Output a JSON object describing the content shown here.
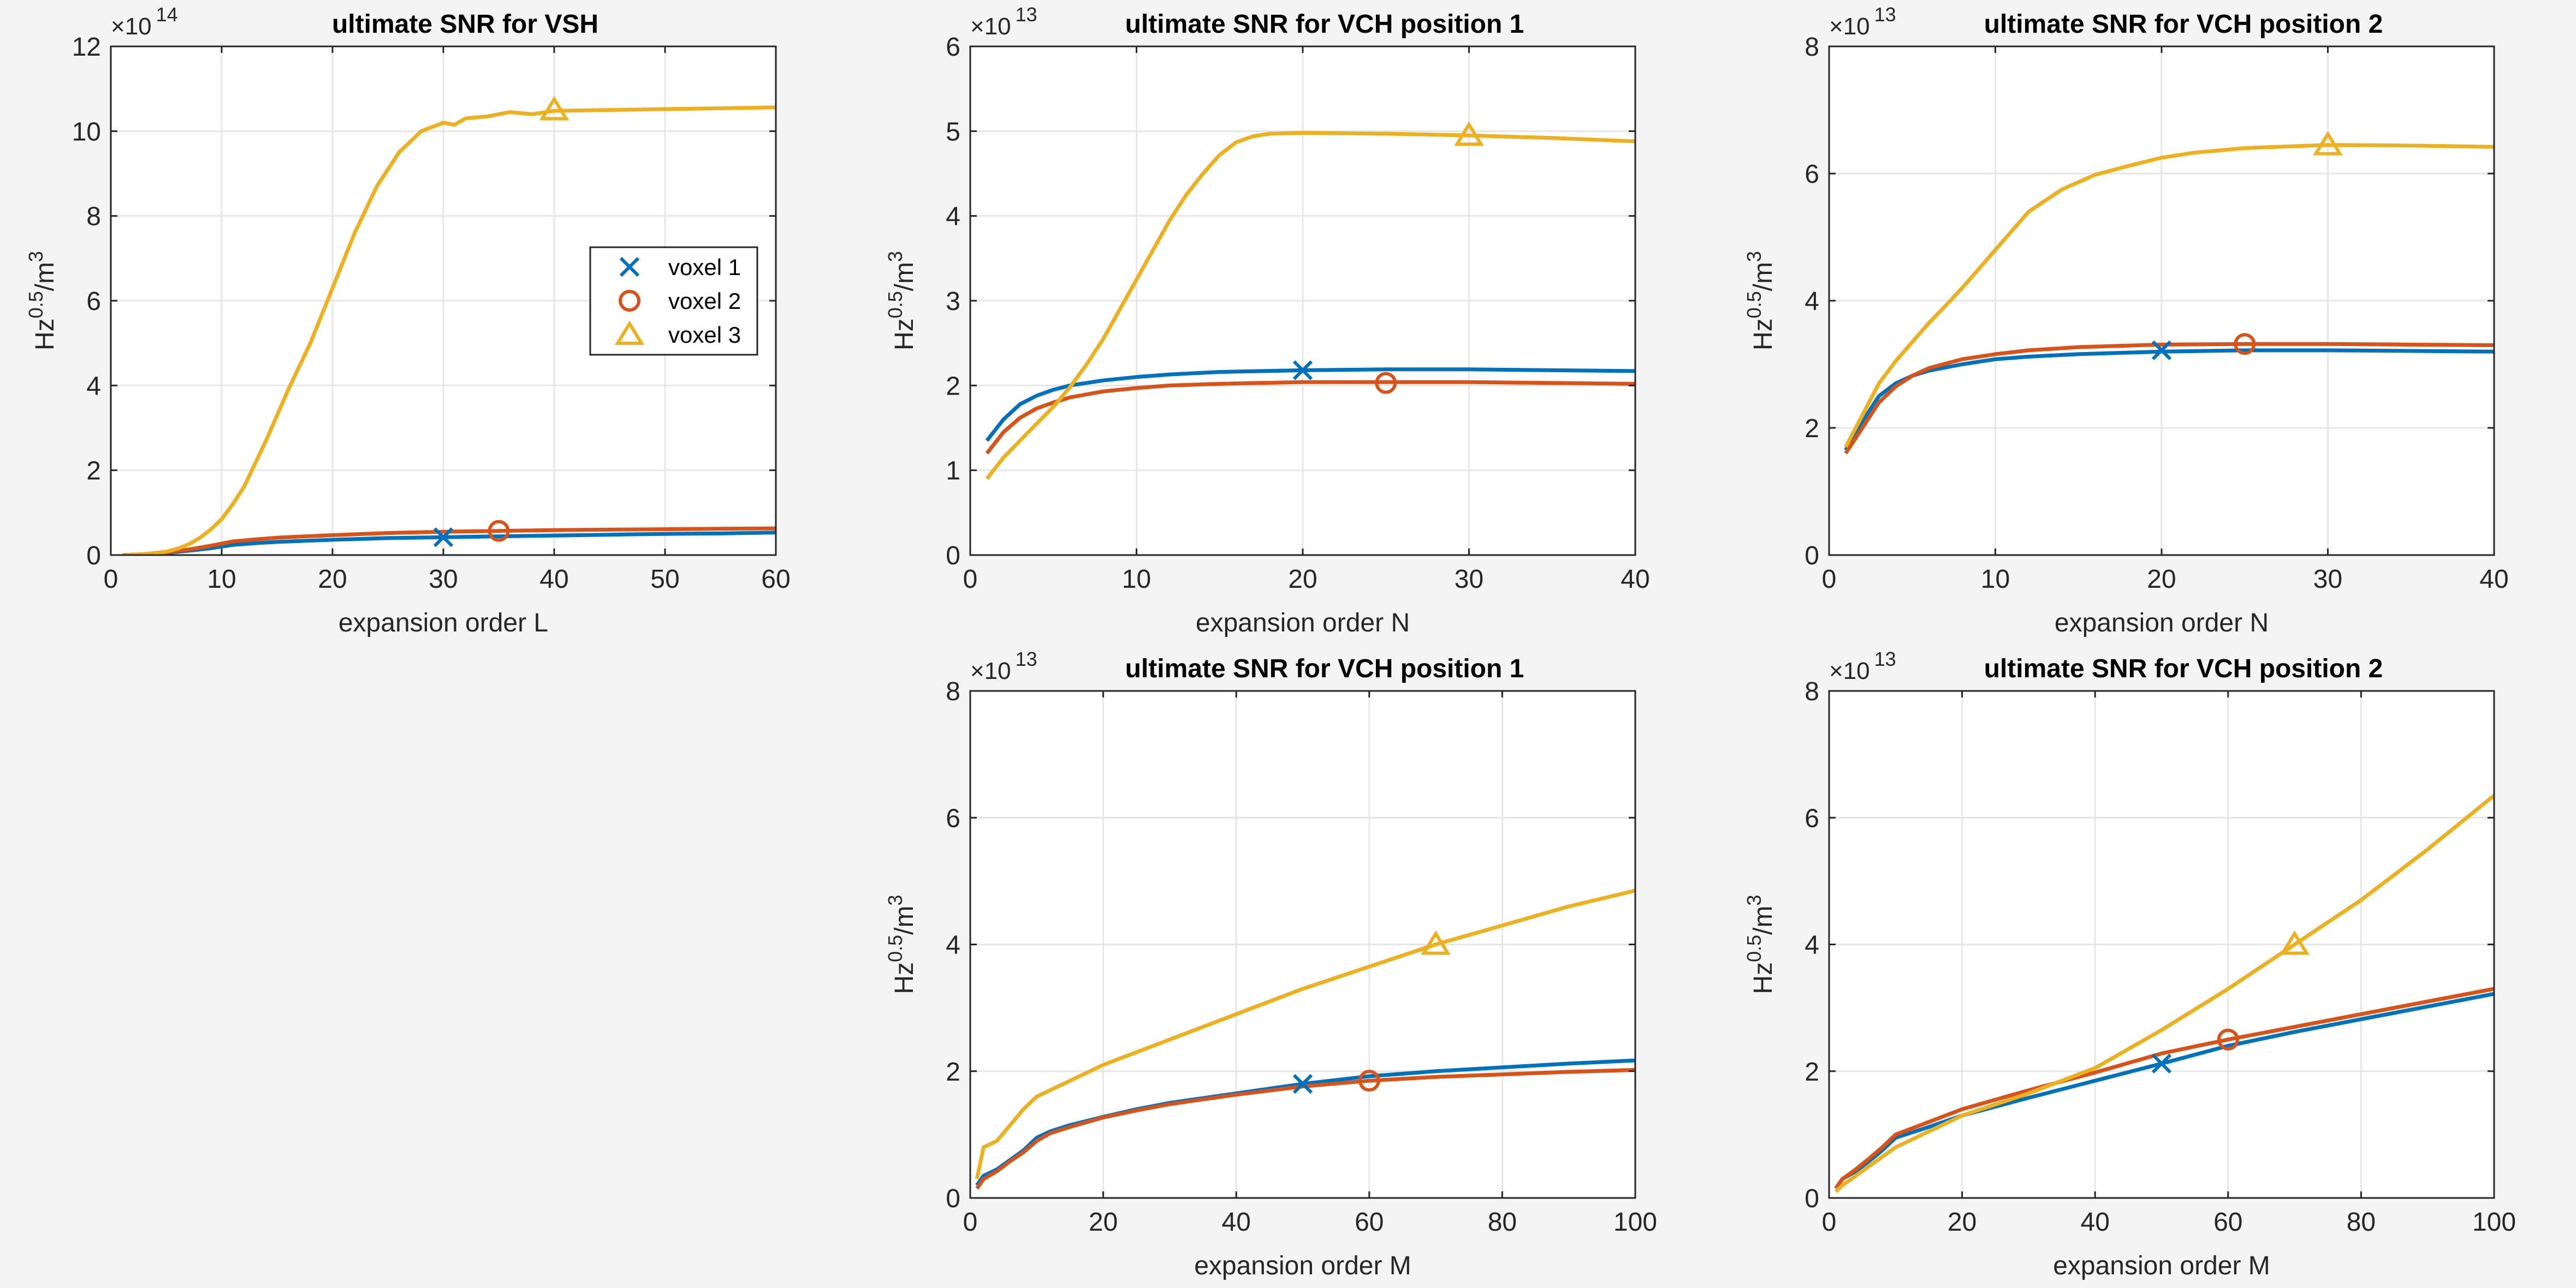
{
  "colors": {
    "voxel1": "#0072bd",
    "voxel2": "#d95319",
    "voxel3": "#edb120",
    "grid": "#e6e6e6",
    "axis": "#262626",
    "background": "#f4f4f4",
    "plot_bg": "#ffffff"
  },
  "chart_data": [
    {
      "type": "line",
      "title": "ultimate SNR for VSH",
      "xlabel": "expansion order L",
      "ylabel_base": "Hz",
      "ylabel_exp": "0.5",
      "ylabel_mid": "/m",
      "ylabel_exp2": "3",
      "multiplier_base": "×10",
      "multiplier_exp": "14",
      "xlim": [
        0,
        60
      ],
      "ylim": [
        0,
        12
      ],
      "xticks": [
        0,
        10,
        20,
        30,
        40,
        50,
        60
      ],
      "yticks": [
        0,
        2,
        4,
        6,
        8,
        10,
        12
      ],
      "legend": {
        "position": "east",
        "entries": [
          {
            "label": "voxel 1",
            "marker": "x",
            "color": "#0072bd"
          },
          {
            "label": "voxel 2",
            "marker": "o",
            "color": "#d95319"
          },
          {
            "label": "voxel 3",
            "marker": "triangle",
            "color": "#edb120"
          }
        ]
      },
      "series": [
        {
          "name": "voxel 1",
          "color": "#0072bd",
          "marker": "x",
          "marker_at": [
            30,
            0.42
          ],
          "x": [
            1,
            3,
            5,
            7,
            9,
            11,
            13,
            15,
            20,
            25,
            30,
            35,
            40,
            45,
            50,
            55,
            60
          ],
          "y": [
            0,
            0.02,
            0.05,
            0.1,
            0.16,
            0.24,
            0.28,
            0.31,
            0.36,
            0.4,
            0.42,
            0.44,
            0.46,
            0.48,
            0.5,
            0.51,
            0.53
          ]
        },
        {
          "name": "voxel 2",
          "color": "#d95319",
          "marker": "o",
          "marker_at": [
            35,
            0.57
          ],
          "x": [
            1,
            3,
            5,
            7,
            9,
            11,
            13,
            15,
            20,
            25,
            30,
            35,
            40,
            45,
            50,
            55,
            60
          ],
          "y": [
            0,
            0.02,
            0.06,
            0.13,
            0.22,
            0.32,
            0.37,
            0.41,
            0.47,
            0.52,
            0.55,
            0.57,
            0.59,
            0.6,
            0.61,
            0.62,
            0.63
          ]
        },
        {
          "name": "voxel 3",
          "color": "#edb120",
          "marker": "triangle",
          "marker_at": [
            40,
            10.5
          ],
          "x": [
            1,
            3,
            5,
            6,
            7,
            8,
            9,
            10,
            11,
            12,
            14,
            16,
            18,
            20,
            22,
            24,
            26,
            28,
            30,
            31,
            32,
            34,
            36,
            38,
            40,
            45,
            50,
            55,
            60
          ],
          "y": [
            0,
            0.02,
            0.08,
            0.15,
            0.25,
            0.4,
            0.6,
            0.85,
            1.2,
            1.6,
            2.7,
            3.9,
            5.0,
            6.3,
            7.6,
            8.7,
            9.5,
            10.0,
            10.2,
            10.15,
            10.3,
            10.35,
            10.45,
            10.4,
            10.48,
            10.5,
            10.52,
            10.54,
            10.56
          ]
        }
      ]
    },
    {
      "type": "line",
      "title": "ultimate SNR for VCH position 1",
      "xlabel": "expansion order N",
      "ylabel_base": "Hz",
      "ylabel_exp": "0.5",
      "ylabel_mid": "/m",
      "ylabel_exp2": "3",
      "multiplier_base": "×10",
      "multiplier_exp": "13",
      "xlim": [
        0,
        40
      ],
      "ylim": [
        0,
        6
      ],
      "xticks": [
        0,
        10,
        20,
        30,
        40
      ],
      "yticks": [
        0,
        1,
        2,
        3,
        4,
        5,
        6
      ],
      "series": [
        {
          "name": "voxel 1",
          "color": "#0072bd",
          "marker": "x",
          "marker_at": [
            20,
            2.18
          ],
          "x": [
            1,
            2,
            3,
            4,
            5,
            6,
            8,
            10,
            12,
            15,
            20,
            25,
            30,
            35,
            40
          ],
          "y": [
            1.35,
            1.6,
            1.78,
            1.88,
            1.95,
            2.0,
            2.06,
            2.1,
            2.13,
            2.16,
            2.18,
            2.19,
            2.19,
            2.18,
            2.17
          ]
        },
        {
          "name": "voxel 2",
          "color": "#d95319",
          "marker": "o",
          "marker_at": [
            25,
            2.03
          ],
          "x": [
            1,
            2,
            3,
            4,
            5,
            6,
            8,
            10,
            12,
            15,
            20,
            25,
            30,
            35,
            40
          ],
          "y": [
            1.2,
            1.45,
            1.62,
            1.73,
            1.8,
            1.86,
            1.93,
            1.97,
            2.0,
            2.02,
            2.04,
            2.04,
            2.04,
            2.03,
            2.02
          ]
        },
        {
          "name": "voxel 3",
          "color": "#edb120",
          "marker": "triangle",
          "marker_at": [
            30,
            4.95
          ],
          "x": [
            1,
            2,
            3,
            4,
            5,
            6,
            7,
            8,
            9,
            10,
            11,
            12,
            13,
            14,
            15,
            16,
            17,
            18,
            20,
            25,
            30,
            35,
            40
          ],
          "y": [
            0.9,
            1.15,
            1.35,
            1.55,
            1.75,
            1.98,
            2.25,
            2.55,
            2.9,
            3.25,
            3.6,
            3.95,
            4.25,
            4.5,
            4.72,
            4.87,
            4.94,
            4.97,
            4.98,
            4.97,
            4.95,
            4.92,
            4.88
          ]
        }
      ]
    },
    {
      "type": "line",
      "title": "ultimate SNR for VCH position 2",
      "xlabel": "expansion order N",
      "ylabel_base": "Hz",
      "ylabel_exp": "0.5",
      "ylabel_mid": "/m",
      "ylabel_exp2": "3",
      "multiplier_base": "×10",
      "multiplier_exp": "13",
      "xlim": [
        0,
        40
      ],
      "ylim": [
        0,
        8
      ],
      "xticks": [
        0,
        10,
        20,
        30,
        40
      ],
      "yticks": [
        0,
        2,
        4,
        6,
        8
      ],
      "series": [
        {
          "name": "voxel 1",
          "color": "#0072bd",
          "marker": "x",
          "marker_at": [
            20,
            3.22
          ],
          "x": [
            1,
            2,
            3,
            4,
            5,
            6,
            8,
            10,
            12,
            15,
            20,
            25,
            30,
            35,
            40
          ],
          "y": [
            1.65,
            2.1,
            2.5,
            2.7,
            2.82,
            2.9,
            3.0,
            3.08,
            3.12,
            3.16,
            3.2,
            3.22,
            3.22,
            3.21,
            3.2
          ]
        },
        {
          "name": "voxel 2",
          "color": "#d95319",
          "marker": "o",
          "marker_at": [
            25,
            3.32
          ],
          "x": [
            1,
            2,
            3,
            4,
            5,
            6,
            8,
            10,
            12,
            15,
            20,
            25,
            30,
            35,
            40
          ],
          "y": [
            1.6,
            2.0,
            2.4,
            2.65,
            2.82,
            2.94,
            3.08,
            3.16,
            3.22,
            3.27,
            3.31,
            3.32,
            3.32,
            3.31,
            3.3
          ]
        },
        {
          "name": "voxel 3",
          "color": "#edb120",
          "marker": "triangle",
          "marker_at": [
            30,
            6.45
          ],
          "x": [
            1,
            2,
            3,
            4,
            5,
            6,
            7,
            8,
            9,
            10,
            12,
            14,
            16,
            18,
            20,
            22,
            25,
            28,
            30,
            35,
            40
          ],
          "y": [
            1.7,
            2.2,
            2.7,
            3.05,
            3.35,
            3.65,
            3.92,
            4.2,
            4.5,
            4.8,
            5.4,
            5.75,
            5.98,
            6.12,
            6.25,
            6.33,
            6.4,
            6.43,
            6.45,
            6.44,
            6.42
          ]
        }
      ]
    },
    {
      "type": "line",
      "title": "ultimate SNR for VCH position 1",
      "xlabel": "expansion order M",
      "ylabel_base": "Hz",
      "ylabel_exp": "0.5",
      "ylabel_mid": "/m",
      "ylabel_exp2": "3",
      "multiplier_base": "×10",
      "multiplier_exp": "13",
      "xlim": [
        0,
        100
      ],
      "ylim": [
        0,
        8
      ],
      "xticks": [
        0,
        20,
        40,
        60,
        80,
        100
      ],
      "yticks": [
        0,
        2,
        4,
        6,
        8
      ],
      "series": [
        {
          "name": "voxel 1",
          "color": "#0072bd",
          "marker": "x",
          "marker_at": [
            50,
            1.8
          ],
          "x": [
            1,
            2,
            4,
            6,
            8,
            10,
            12,
            15,
            20,
            25,
            30,
            40,
            50,
            60,
            70,
            80,
            90,
            100
          ],
          "y": [
            0.2,
            0.35,
            0.45,
            0.6,
            0.75,
            0.95,
            1.05,
            1.15,
            1.28,
            1.4,
            1.5,
            1.65,
            1.8,
            1.92,
            2.0,
            2.06,
            2.12,
            2.17
          ]
        },
        {
          "name": "voxel 2",
          "color": "#d95319",
          "marker": "o",
          "marker_at": [
            60,
            1.85
          ],
          "x": [
            1,
            2,
            4,
            6,
            8,
            10,
            12,
            15,
            20,
            25,
            30,
            40,
            50,
            60,
            70,
            80,
            90,
            100
          ],
          "y": [
            0.15,
            0.3,
            0.42,
            0.58,
            0.72,
            0.9,
            1.02,
            1.12,
            1.27,
            1.38,
            1.48,
            1.63,
            1.76,
            1.85,
            1.91,
            1.95,
            1.99,
            2.02
          ]
        },
        {
          "name": "voxel 3",
          "color": "#edb120",
          "marker": "triangle",
          "marker_at": [
            70,
            4.0
          ],
          "x": [
            1,
            2,
            4,
            6,
            8,
            10,
            15,
            20,
            30,
            40,
            50,
            60,
            70,
            80,
            90,
            100
          ],
          "y": [
            0.3,
            0.8,
            0.9,
            1.15,
            1.4,
            1.6,
            1.85,
            2.1,
            2.5,
            2.9,
            3.3,
            3.65,
            4.0,
            4.3,
            4.6,
            4.85
          ]
        }
      ]
    },
    {
      "type": "line",
      "title": "ultimate SNR for VCH position 2",
      "xlabel": "expansion order M",
      "ylabel_base": "Hz",
      "ylabel_exp": "0.5",
      "ylabel_mid": "/m",
      "ylabel_exp2": "3",
      "multiplier_base": "×10",
      "multiplier_exp": "13",
      "xlim": [
        0,
        100
      ],
      "ylim": [
        0,
        8
      ],
      "xticks": [
        0,
        20,
        40,
        60,
        80,
        100
      ],
      "yticks": [
        0,
        2,
        4,
        6,
        8
      ],
      "series": [
        {
          "name": "voxel 1",
          "color": "#0072bd",
          "marker": "x",
          "marker_at": [
            50,
            2.12
          ],
          "x": [
            1,
            2,
            4,
            6,
            8,
            10,
            15,
            20,
            30,
            40,
            50,
            60,
            70,
            80,
            90,
            100
          ],
          "y": [
            0.15,
            0.3,
            0.42,
            0.58,
            0.75,
            0.95,
            1.12,
            1.3,
            1.58,
            1.85,
            2.12,
            2.4,
            2.62,
            2.82,
            3.02,
            3.22
          ]
        },
        {
          "name": "voxel 2",
          "color": "#d95319",
          "marker": "o",
          "marker_at": [
            60,
            2.5
          ],
          "x": [
            1,
            2,
            4,
            6,
            8,
            10,
            15,
            20,
            30,
            40,
            50,
            60,
            70,
            80,
            90,
            100
          ],
          "y": [
            0.15,
            0.3,
            0.45,
            0.62,
            0.8,
            1.0,
            1.2,
            1.4,
            1.7,
            1.98,
            2.28,
            2.5,
            2.7,
            2.9,
            3.1,
            3.3
          ]
        },
        {
          "name": "voxel 3",
          "color": "#edb120",
          "marker": "triangle",
          "marker_at": [
            70,
            4.0
          ],
          "x": [
            1,
            2,
            4,
            6,
            8,
            10,
            15,
            20,
            30,
            40,
            50,
            60,
            70,
            80,
            90,
            100
          ],
          "y": [
            0.1,
            0.2,
            0.35,
            0.5,
            0.65,
            0.8,
            1.05,
            1.3,
            1.65,
            2.05,
            2.65,
            3.3,
            4.0,
            4.7,
            5.5,
            6.35
          ]
        }
      ]
    }
  ]
}
